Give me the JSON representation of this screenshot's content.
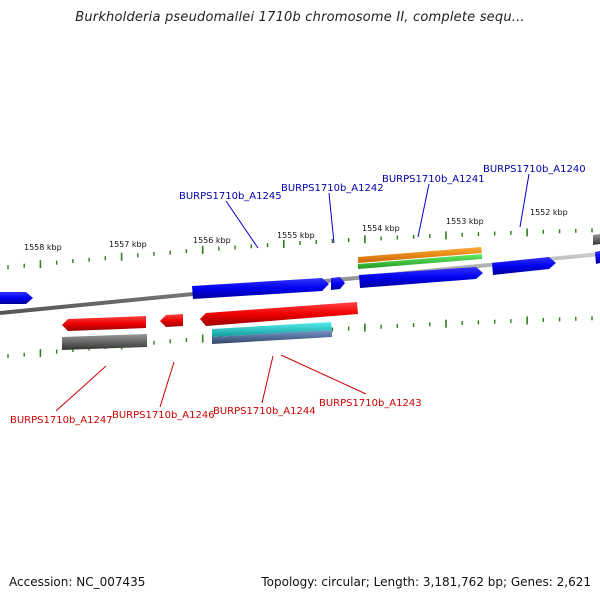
{
  "title": "Burkholderia pseudomallei 1710b chromosome II, complete sequ...",
  "scale_labels": [
    "1558 kbp",
    "1557 kbp",
    "1556 kbp",
    "1555 kbp",
    "1554 kbp",
    "1553 kbp",
    "1552 kbp"
  ],
  "top_gene_labels": [
    "BURPS1710b_A1245",
    "BURPS1710b_A1242",
    "BURPS1710b_A1241",
    "BURPS1710b_A1240"
  ],
  "bottom_gene_labels": [
    "BURPS1710b_A1247",
    "BURPS1710b_A1246",
    "BURPS1710b_A1244",
    "BURPS1710b_A1243"
  ],
  "colors": {
    "forward_gene": "#0000ee",
    "reverse_gene": "#ee0000",
    "backbone": "#888888",
    "tick": "#2e7d1a",
    "feature_orange": "#ff8800",
    "feature_green": "#33cc33",
    "feature_cyan": "#22cccc",
    "feature_steel": "#5577aa",
    "feature_gray": "#666666"
  },
  "footer": {
    "accession": "Accession: NC_007435",
    "summary": "Topology: circular; Length: 3,181,762 bp; Genes: 2,621"
  }
}
